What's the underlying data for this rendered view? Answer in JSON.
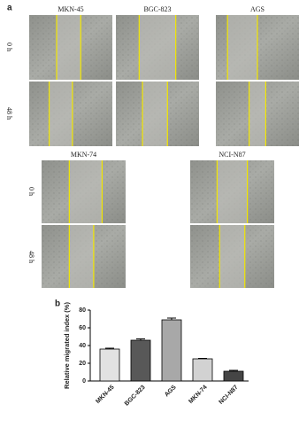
{
  "panel_a": {
    "label": "a",
    "time_labels": [
      "0 h",
      "48 h"
    ],
    "cell_lines": [
      "MKN-45",
      "BGC-823",
      "AGS",
      "MKN-74",
      "NCI-N87"
    ]
  },
  "chart_data": {
    "type": "bar",
    "panel_label": "b",
    "y_label": "Relative migrated index (%)",
    "categories": [
      "MKN-45",
      "BGC-823",
      "AGS",
      "MKN-74",
      "NCI-N87"
    ],
    "values": [
      36,
      46,
      69,
      25,
      11
    ],
    "errors": [
      1,
      1.5,
      2,
      0.5,
      1
    ],
    "colors": [
      "#e2e2e2",
      "#585858",
      "#a8a8a8",
      "#d2d2d2",
      "#454545"
    ],
    "ylim": [
      0,
      80
    ],
    "yticks": [
      0,
      20,
      40,
      60,
      80
    ]
  }
}
